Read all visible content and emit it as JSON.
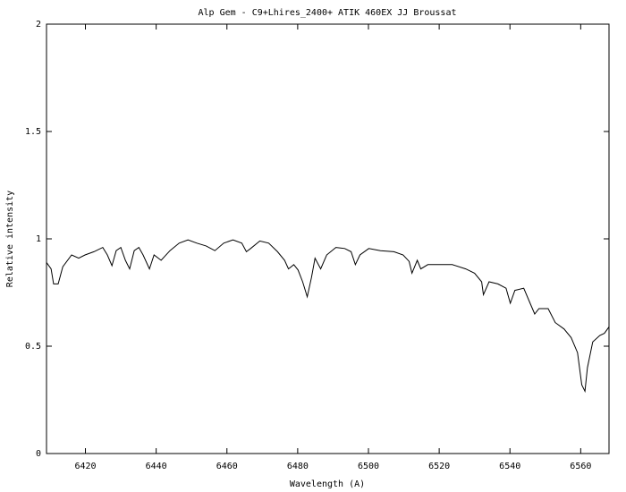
{
  "chart_data": {
    "type": "line",
    "title": "Alp Gem - C9+Lhires_2400+ ATIK 460EX  JJ Broussat",
    "x_label": "Wavelength (A)",
    "y_label": "Relative intensity",
    "xlim": [
      6409,
      6568
    ],
    "ylim": [
      0,
      2
    ],
    "xticks": [
      6420,
      6440,
      6460,
      6480,
      6500,
      6520,
      6540,
      6560
    ],
    "yticks": [
      0,
      0.5,
      1,
      1.5,
      2
    ],
    "grid": false,
    "series": [
      {
        "color": "#000000",
        "x": [
          6409.0,
          6410.3,
          6411.0,
          6412.3,
          6413.6,
          6416.1,
          6418.1,
          6419.9,
          6422.4,
          6424.9,
          6426.2,
          6427.5,
          6428.7,
          6430.0,
          6431.3,
          6432.5,
          6433.8,
          6435.1,
          6436.3,
          6438.1,
          6439.4,
          6441.4,
          6443.9,
          6446.5,
          6449.0,
          6451.5,
          6454.1,
          6456.6,
          6459.1,
          6461.7,
          6464.2,
          6465.5,
          6466.7,
          6469.3,
          6471.8,
          6474.3,
          6476.3,
          6477.4,
          6478.9,
          6480.1,
          6481.4,
          6482.7,
          6483.9,
          6484.9,
          6486.5,
          6488.2,
          6490.8,
          6493.3,
          6495.1,
          6496.3,
          6497.6,
          6500.1,
          6503.4,
          6507.2,
          6509.8,
          6511.5,
          6512.3,
          6513.8,
          6514.8,
          6516.8,
          6519.9,
          6523.7,
          6527.5,
          6530.0,
          6532.0,
          6532.5,
          6534.1,
          6536.6,
          6538.9,
          6540.1,
          6541.4,
          6543.9,
          6545.7,
          6547.0,
          6548.2,
          6550.8,
          6552.8,
          6555.3,
          6557.3,
          6559.1,
          6560.3,
          6561.2,
          6561.9,
          6563.4,
          6565.4,
          6566.7,
          6568.0
        ],
        "values": [
          0.89,
          0.86,
          0.79,
          0.79,
          0.87,
          0.925,
          0.91,
          0.925,
          0.94,
          0.96,
          0.925,
          0.875,
          0.945,
          0.96,
          0.9,
          0.86,
          0.945,
          0.96,
          0.925,
          0.86,
          0.925,
          0.9,
          0.945,
          0.98,
          0.995,
          0.98,
          0.967,
          0.945,
          0.98,
          0.995,
          0.98,
          0.94,
          0.955,
          0.99,
          0.98,
          0.94,
          0.9,
          0.86,
          0.88,
          0.855,
          0.8,
          0.73,
          0.82,
          0.91,
          0.86,
          0.925,
          0.96,
          0.955,
          0.94,
          0.88,
          0.925,
          0.955,
          0.945,
          0.94,
          0.925,
          0.895,
          0.84,
          0.9,
          0.86,
          0.88,
          0.88,
          0.88,
          0.86,
          0.84,
          0.8,
          0.74,
          0.8,
          0.79,
          0.77,
          0.7,
          0.76,
          0.77,
          0.7,
          0.65,
          0.675,
          0.675,
          0.61,
          0.58,
          0.54,
          0.47,
          0.32,
          0.29,
          0.4,
          0.52,
          0.55,
          0.56,
          0.59
        ]
      }
    ]
  }
}
